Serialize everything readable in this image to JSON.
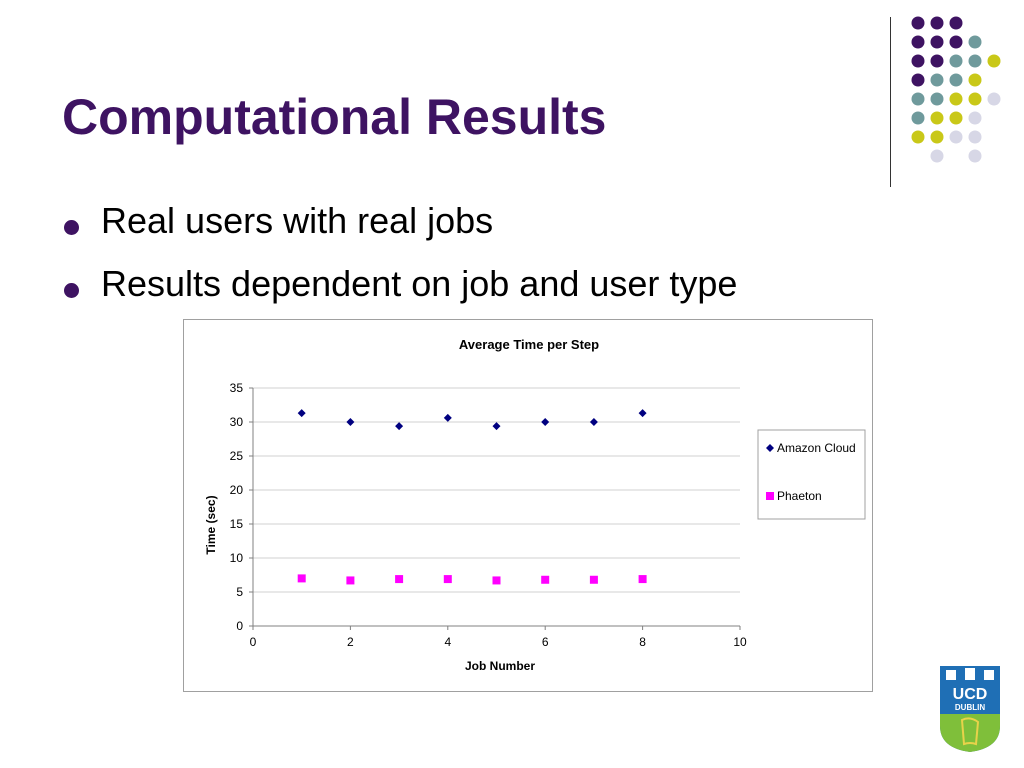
{
  "slide": {
    "title": "Computational Results",
    "bullets": [
      "Real users with real jobs",
      "Results dependent on job and user type"
    ]
  },
  "logo": {
    "text_top": "UCD",
    "text_bottom": "DUBLIN"
  },
  "colors": {
    "title": "#3e1362",
    "dot_purple": "#3e1362",
    "dot_teal": "#6f9a9c",
    "dot_olive": "#c9c818",
    "dot_lavender": "#d7d7e6",
    "amazon": "#000080",
    "phaeton": "#ff00ff"
  },
  "chart_data": {
    "type": "scatter",
    "title": "Average Time per Step",
    "xlabel": "Job Number",
    "ylabel": "Time (sec)",
    "xlim": [
      0,
      10
    ],
    "ylim": [
      0,
      35
    ],
    "xticks": [
      0,
      2,
      4,
      6,
      8,
      10
    ],
    "yticks": [
      0,
      5,
      10,
      15,
      20,
      25,
      30,
      35
    ],
    "grid": "horizontal",
    "legend_position": "right",
    "series": [
      {
        "name": "Amazon Cloud",
        "marker": "diamond",
        "color": "#000080",
        "x": [
          1,
          2,
          3,
          4,
          5,
          6,
          7,
          8
        ],
        "y": [
          31.3,
          30.0,
          29.4,
          30.6,
          29.4,
          30.0,
          30.0,
          31.3
        ]
      },
      {
        "name": "Phaeton",
        "marker": "square",
        "color": "#ff00ff",
        "x": [
          1,
          2,
          3,
          4,
          5,
          6,
          7,
          8
        ],
        "y": [
          7.0,
          6.7,
          6.9,
          6.9,
          6.7,
          6.8,
          6.8,
          6.9
        ]
      }
    ]
  }
}
